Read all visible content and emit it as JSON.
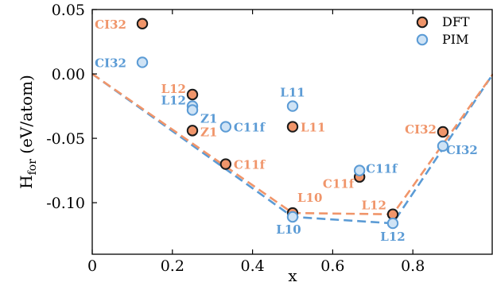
{
  "chart_data": {
    "type": "scatter",
    "xlabel": "x",
    "ylabel_main": "H",
    "ylabel_sub": "for",
    "ylabel_unit": " (eV/atom)",
    "xlim": [
      0,
      1
    ],
    "ylim": [
      -0.14,
      0.05
    ],
    "xticks": [
      {
        "value": 0,
        "label": "0"
      },
      {
        "value": 0.2,
        "label": "0.2"
      },
      {
        "value": 0.4,
        "label": "0.4"
      },
      {
        "value": 0.6,
        "label": "0.6"
      },
      {
        "value": 0.8,
        "label": "0.8"
      }
    ],
    "yticks": [
      {
        "value": 0.05,
        "label": "0.05"
      },
      {
        "value": 0.0,
        "label": "0.00"
      },
      {
        "value": -0.05,
        "label": "-0.05"
      },
      {
        "value": -0.1,
        "label": "-0.10"
      }
    ],
    "grid": false,
    "legend_position": "top-right",
    "series": [
      {
        "name": "DFT",
        "color": "#f0956a",
        "label_color": "#f0956a",
        "points": [
          {
            "x": 0.125,
            "y": 0.039,
            "label": "CI32"
          },
          {
            "x": 0.25,
            "y": -0.016,
            "label": "L12"
          },
          {
            "x": 0.25,
            "y": -0.044,
            "label": "Z1"
          },
          {
            "x": 0.333,
            "y": -0.07,
            "label": "C11f"
          },
          {
            "x": 0.5,
            "y": -0.041,
            "label": "L11"
          },
          {
            "x": 0.5,
            "y": -0.108,
            "label": "L10"
          },
          {
            "x": 0.667,
            "y": -0.08,
            "label": "C11f"
          },
          {
            "x": 0.75,
            "y": -0.109,
            "label": "L12"
          },
          {
            "x": 0.875,
            "y": -0.045,
            "label": "CI32"
          }
        ],
        "hull": [
          [
            0,
            0
          ],
          [
            0.5,
            -0.108
          ],
          [
            0.75,
            -0.109
          ],
          [
            1,
            0
          ]
        ]
      },
      {
        "name": "PIM",
        "color": "#5b9bd5",
        "label_color": "#5b9bd5",
        "points": [
          {
            "x": 0.125,
            "y": 0.009,
            "label": "CI32"
          },
          {
            "x": 0.25,
            "y": -0.025,
            "label": "L12"
          },
          {
            "x": 0.25,
            "y": -0.028,
            "label": "Z1"
          },
          {
            "x": 0.333,
            "y": -0.041,
            "label": "C11f"
          },
          {
            "x": 0.5,
            "y": -0.025,
            "label": "L11"
          },
          {
            "x": 0.5,
            "y": -0.111,
            "label": "L10"
          },
          {
            "x": 0.667,
            "y": -0.075,
            "label": "C11f"
          },
          {
            "x": 0.75,
            "y": -0.116,
            "label": "L12"
          },
          {
            "x": 0.875,
            "y": -0.056,
            "label": "CI32"
          }
        ],
        "hull": [
          [
            0,
            0
          ],
          [
            0.5,
            -0.111
          ],
          [
            0.75,
            -0.116
          ],
          [
            1,
            0
          ]
        ]
      }
    ]
  }
}
